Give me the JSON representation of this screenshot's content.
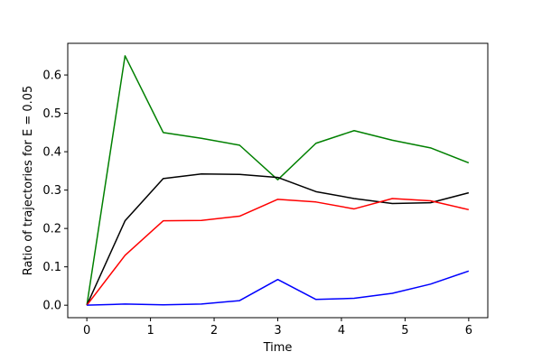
{
  "chart_data": {
    "type": "line",
    "xlabel": "Time",
    "ylabel": "Ratio of trajectories for E = 0.05",
    "xlim": [
      -0.3,
      6.3
    ],
    "ylim": [
      -0.0325,
      0.6825
    ],
    "xticks": [
      0,
      1,
      2,
      3,
      4,
      5,
      6
    ],
    "yticks": [
      0.0,
      0.1,
      0.2,
      0.3,
      0.4,
      0.5,
      0.6
    ],
    "xtick_labels": [
      "0",
      "1",
      "2",
      "3",
      "4",
      "5",
      "6"
    ],
    "ytick_labels": [
      "0.0",
      "0.1",
      "0.2",
      "0.3",
      "0.4",
      "0.5",
      "0.6"
    ],
    "grid": false,
    "x": [
      0,
      0.6,
      1.2,
      1.8,
      2.4,
      3.0,
      3.6,
      4.2,
      4.8,
      5.4,
      6.0
    ],
    "series": [
      {
        "color": "#008000",
        "values": [
          0.0,
          0.65,
          0.45,
          0.435,
          0.417,
          0.327,
          0.422,
          0.455,
          0.43,
          0.41,
          0.371
        ]
      },
      {
        "color": "#000000",
        "values": [
          0.0,
          0.22,
          0.33,
          0.342,
          0.341,
          0.333,
          0.296,
          0.278,
          0.265,
          0.267,
          0.293
        ]
      },
      {
        "color": "#ff0000",
        "values": [
          0.0,
          0.13,
          0.22,
          0.221,
          0.232,
          0.276,
          0.269,
          0.251,
          0.278,
          0.272,
          0.249
        ]
      },
      {
        "color": "#0000ff",
        "values": [
          0.0,
          0.003,
          0.001,
          0.003,
          0.012,
          0.067,
          0.015,
          0.018,
          0.031,
          0.055,
          0.089
        ]
      }
    ]
  }
}
